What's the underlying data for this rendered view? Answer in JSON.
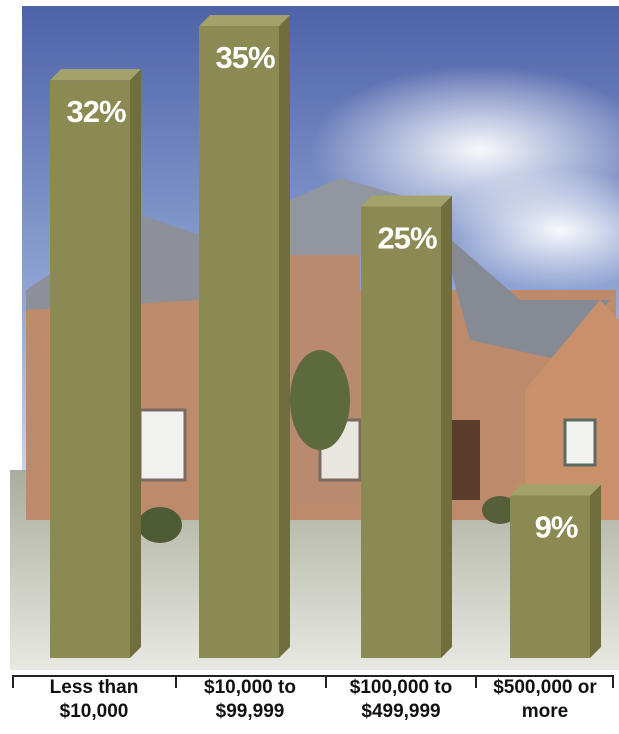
{
  "chart_data": {
    "type": "bar",
    "categories": [
      [
        "Less than",
        "$10,000"
      ],
      [
        "$10,000 to",
        "$99,999"
      ],
      [
        "$100,000 to",
        "$499,999"
      ],
      [
        "$500,000 or",
        "more"
      ]
    ],
    "values": [
      32,
      35,
      25,
      9
    ],
    "value_labels": [
      "32%",
      "35%",
      "25%",
      "9%"
    ],
    "ylim": [
      0,
      35
    ],
    "grid": false,
    "legend": "none"
  },
  "colors": {
    "bar_front": "#8b8a52",
    "bar_side": "#6f6e3c",
    "bar_top": "#a3a26a",
    "label_text": "#ffffff",
    "sky_top": "#5c6fb0",
    "sky_bottom": "#c9d6ee",
    "ground": "#b9bdae",
    "house_brick": "#c48a6a",
    "roof": "#8a8e96"
  },
  "background": {
    "description_icon": "house-photo"
  }
}
